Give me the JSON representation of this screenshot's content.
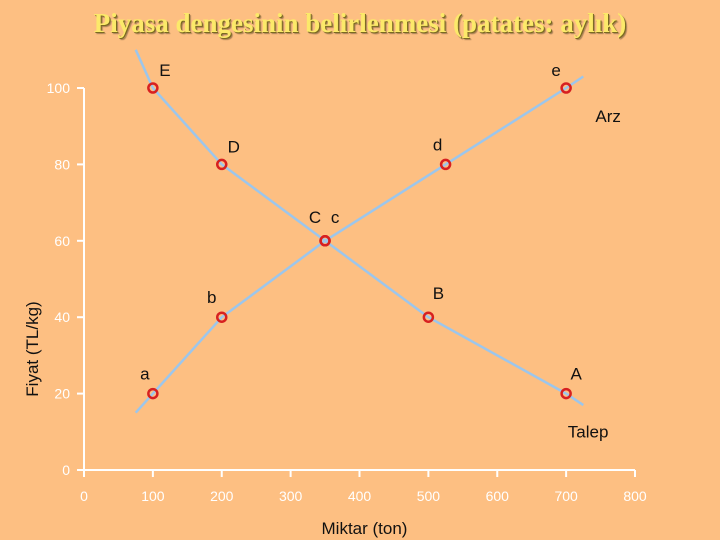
{
  "chart_data": {
    "type": "line",
    "title": "Piyasa dengesinin belirlenmesi (patates: aylık)",
    "xlabel": "Miktar (ton)",
    "ylabel": "Fiyat (TL/kg)",
    "xlim": [
      0,
      800
    ],
    "ylim": [
      0,
      100
    ],
    "x_ticks": [
      "0",
      "100",
      "200",
      "300",
      "400",
      "500",
      "600",
      "700",
      "800"
    ],
    "y_ticks": [
      "0",
      "20",
      "40",
      "60",
      "80",
      "100"
    ],
    "grid": false,
    "series": [
      {
        "name": "Arz",
        "color": "#9CC6EC",
        "points": [
          {
            "x": 75,
            "y": 15
          },
          {
            "x": 100,
            "y": 20,
            "label": "a"
          },
          {
            "x": 200,
            "y": 40,
            "label": "b"
          },
          {
            "x": 350,
            "y": 60,
            "label": "c"
          },
          {
            "x": 525,
            "y": 80,
            "label": "d"
          },
          {
            "x": 700,
            "y": 100,
            "label": "e"
          },
          {
            "x": 725,
            "y": 103
          }
        ]
      },
      {
        "name": "Talep",
        "color": "#9CC6EC",
        "points": [
          {
            "x": 75,
            "y": 110
          },
          {
            "x": 100,
            "y": 100,
            "label": "E"
          },
          {
            "x": 200,
            "y": 80,
            "label": "D"
          },
          {
            "x": 350,
            "y": 60,
            "label": "C"
          },
          {
            "x": 500,
            "y": 40,
            "label": "B"
          },
          {
            "x": 700,
            "y": 20,
            "label": "A"
          },
          {
            "x": 725,
            "y": 17
          }
        ]
      }
    ],
    "marker_color": "#D72020"
  }
}
